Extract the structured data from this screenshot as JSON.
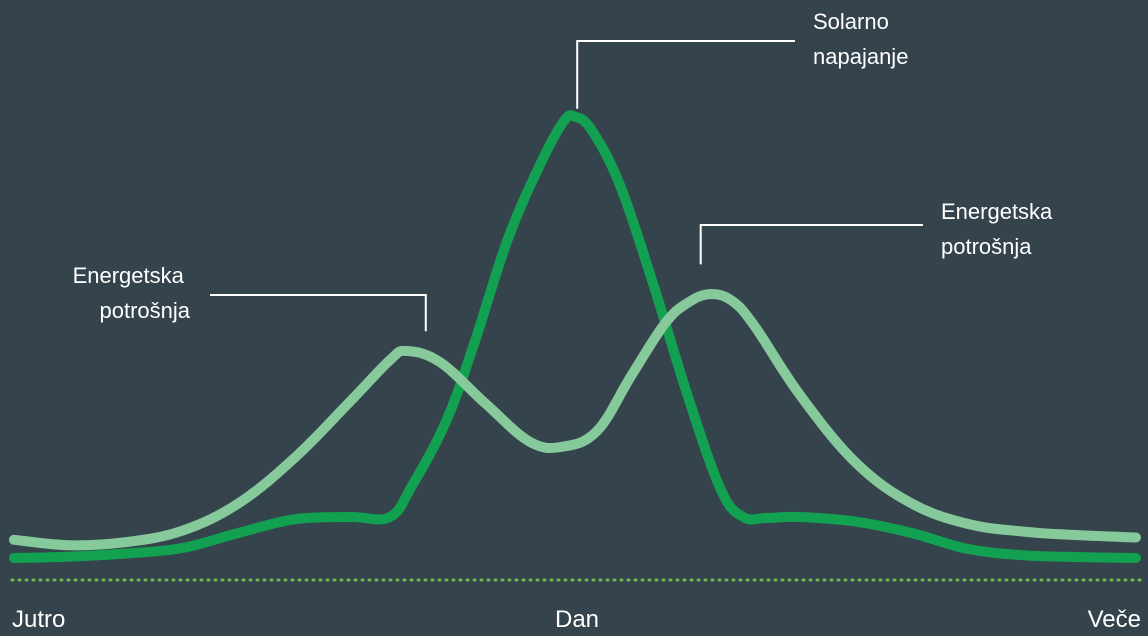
{
  "chart_data": {
    "type": "line",
    "title": "",
    "xlabel": "",
    "ylabel": "",
    "x_range": [
      0,
      100
    ],
    "y_range": [
      0,
      100
    ],
    "x_ticks": [
      {
        "label": "Jutro",
        "x": 0
      },
      {
        "label": "Dan",
        "x": 50
      },
      {
        "label": "Veče",
        "x": 100
      }
    ],
    "grid": false,
    "legend": "none",
    "series": [
      {
        "name": "Solarno napajanje",
        "color": "#12a150",
        "points": [
          [
            0,
            0
          ],
          [
            5,
            0.3
          ],
          [
            10,
            1
          ],
          [
            15,
            2.2
          ],
          [
            20,
            5.5
          ],
          [
            25,
            8.5
          ],
          [
            30,
            9
          ],
          [
            33.5,
            9
          ],
          [
            35.5,
            16
          ],
          [
            38.5,
            30
          ],
          [
            41,
            47
          ],
          [
            44,
            70
          ],
          [
            47,
            87
          ],
          [
            49,
            96
          ],
          [
            50,
            97
          ],
          [
            51.5,
            94
          ],
          [
            54,
            82
          ],
          [
            57,
            60
          ],
          [
            60,
            36
          ],
          [
            63,
            15
          ],
          [
            65,
            9
          ],
          [
            67,
            8.8
          ],
          [
            70,
            9
          ],
          [
            75,
            8
          ],
          [
            80,
            5.5
          ],
          [
            85,
            2
          ],
          [
            90,
            0.6
          ],
          [
            95,
            0.2
          ],
          [
            100,
            0
          ]
        ]
      },
      {
        "name": "Energetska potrošnja",
        "color": "#86c99b",
        "points": [
          [
            0,
            4
          ],
          [
            5,
            2.8
          ],
          [
            10,
            3.5
          ],
          [
            15,
            6
          ],
          [
            20,
            12
          ],
          [
            25,
            22
          ],
          [
            30,
            34.5
          ],
          [
            33.5,
            43.5
          ],
          [
            35,
            45.5
          ],
          [
            38,
            43
          ],
          [
            42,
            34
          ],
          [
            46,
            25.5
          ],
          [
            49,
            24.5
          ],
          [
            52,
            28
          ],
          [
            55,
            40
          ],
          [
            58,
            51.5
          ],
          [
            60,
            56
          ],
          [
            62,
            58
          ],
          [
            64,
            56.5
          ],
          [
            66,
            51
          ],
          [
            70,
            36
          ],
          [
            75,
            21
          ],
          [
            80,
            12
          ],
          [
            85,
            7.5
          ],
          [
            90,
            5.8
          ],
          [
            95,
            5
          ],
          [
            100,
            4.5
          ]
        ]
      }
    ],
    "annotations": [
      {
        "lines": [
          "Energetska",
          "potrošnja"
        ],
        "series": "Energetska potrošnja",
        "x": 36.7,
        "y": 45
      },
      {
        "lines": [
          "Solarno",
          "napajanje"
        ],
        "series": "Solarno napajanje",
        "x": 50.2,
        "y": 97
      },
      {
        "lines": [
          "Energetska",
          "potrošnja"
        ],
        "series": "Energetska potrošnja",
        "x": 61.2,
        "y": 57.5
      }
    ]
  },
  "colors": {
    "background": "#35434d",
    "baseline": "#6fb64b",
    "text": "#ffffff",
    "solar": "#12a150",
    "consumption": "#86c99b"
  }
}
